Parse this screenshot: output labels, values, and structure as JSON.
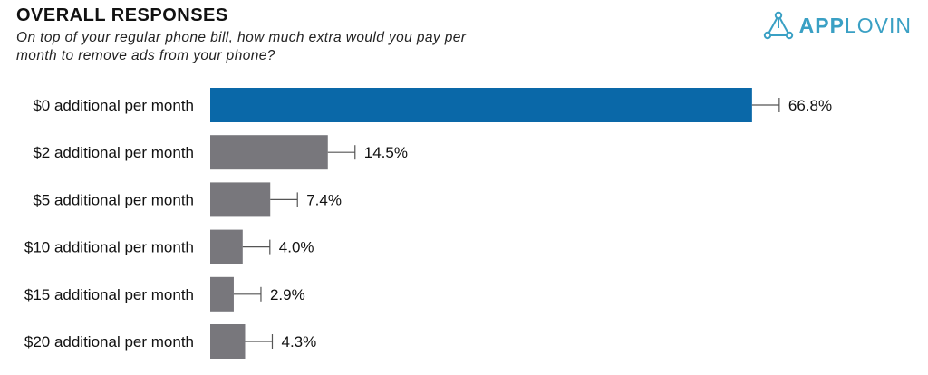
{
  "header": {
    "title": "OVERALL RESPONSES",
    "subtitle": "On top of your regular phone bill, how much extra would you pay per month to remove ads from your phone?"
  },
  "logo": {
    "bold_text": "APP",
    "light_text": "LOVIN",
    "icon": "triangle-network-icon",
    "color": "#3aa0c4"
  },
  "chart_data": {
    "type": "bar",
    "orientation": "horizontal",
    "title": "OVERALL RESPONSES",
    "categories": [
      "$0 additional per month",
      "$2 additional per month",
      "$5 additional per month",
      "$10 additional per month",
      "$15 additional per month",
      "$20 additional per month"
    ],
    "values": [
      66.8,
      14.5,
      7.4,
      4.0,
      2.9,
      4.3
    ],
    "value_labels": [
      "66.8%",
      "14.5%",
      "7.4%",
      "4.0%",
      "2.9%",
      "4.3%"
    ],
    "error_bars": true,
    "highlight_color": "#0a68a8",
    "bar_color": "#78777c",
    "grid": false,
    "legend": "none"
  }
}
